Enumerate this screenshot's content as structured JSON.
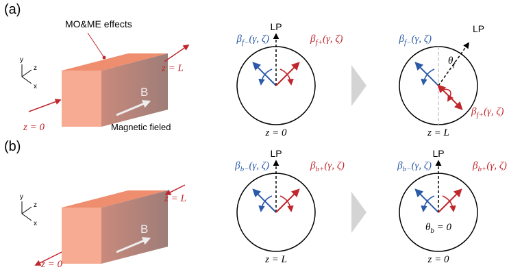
{
  "panels": [
    {
      "label": "(a)",
      "annotation": "MO&ME effects",
      "axes": {
        "y": "y",
        "z": "z",
        "x": "x"
      },
      "end_label": "z = L",
      "start_label": "z = 0",
      "field": "B",
      "field_caption": "Magnetic fieled",
      "states": [
        {
          "lp": "LP",
          "beta_minus": {
            "symbol": "β",
            "sub": "f−",
            "rest": "(γ, ζ)"
          },
          "beta_plus": {
            "symbol": "β",
            "sub": "f+",
            "rest": "(γ, ζ)"
          },
          "position": "z = 0"
        },
        {
          "lp": "LP",
          "beta_minus": {
            "symbol": "β",
            "sub": "f−",
            "rest": "(γ, ζ)"
          },
          "beta_plus": {
            "symbol": "β",
            "sub": "f+",
            "rest": "(γ, ζ)"
          },
          "angle": {
            "symbol": "θ",
            "sub": "f",
            "rest": ""
          },
          "position": "z = L"
        }
      ]
    },
    {
      "label": "(b)",
      "axes": {
        "y": "y",
        "z": "z",
        "x": "x"
      },
      "end_label": "z = L",
      "start_label": "z = 0",
      "field": "B",
      "states": [
        {
          "lp": "LP",
          "beta_minus": {
            "symbol": "β",
            "sub": "b−",
            "rest": "(γ, ζ)"
          },
          "beta_plus": {
            "symbol": "β",
            "sub": "b+",
            "rest": "(γ, ζ)"
          },
          "position": "z = L"
        },
        {
          "lp": "LP",
          "beta_minus": {
            "symbol": "β",
            "sub": "b−",
            "rest": "(γ, ζ)"
          },
          "beta_plus": {
            "symbol": "β",
            "sub": "b+",
            "rest": "(γ, ζ)"
          },
          "angle": {
            "symbol": "θ",
            "sub": "b",
            "rest": " = 0"
          },
          "position": "z = 0"
        }
      ]
    }
  ]
}
